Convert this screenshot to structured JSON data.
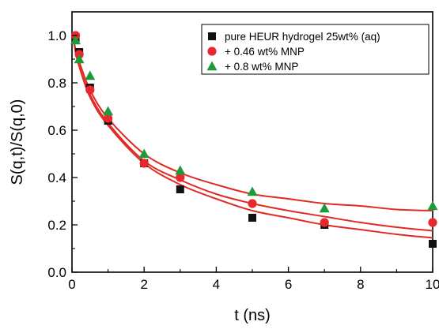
{
  "chart_data": {
    "type": "scatter",
    "title": "",
    "xlabel": "t (ns)",
    "ylabel": "S(q,t)/S(q,0)",
    "xlim": [
      0,
      10
    ],
    "ylim": [
      0,
      1.1
    ],
    "xticks": [
      0,
      2,
      4,
      6,
      8,
      10
    ],
    "yticks": [
      0.0,
      0.2,
      0.4,
      0.6,
      0.8,
      1.0
    ],
    "xtick_labels": [
      "0",
      "2",
      "4",
      "6",
      "8",
      "10"
    ],
    "ytick_labels": [
      "0.0",
      "0.2",
      "0.4",
      "0.6",
      "0.8",
      "1.0"
    ],
    "grid": false,
    "legend_position": "top-right",
    "series": [
      {
        "name": "pure HEUR hydrogel 25wt% (aq)",
        "marker": "square",
        "color": "#111111",
        "x": [
          0.1,
          0.2,
          0.5,
          1,
          2,
          3,
          5,
          7,
          10
        ],
        "y": [
          0.99,
          0.93,
          0.78,
          0.64,
          0.46,
          0.35,
          0.23,
          0.2,
          0.12
        ]
      },
      {
        "name": "+ 0.46 wt% MNP",
        "marker": "circle",
        "color": "#e8282d",
        "x": [
          0.1,
          0.2,
          0.5,
          1,
          2,
          3,
          5,
          7,
          10
        ],
        "y": [
          1.0,
          0.92,
          0.77,
          0.65,
          0.46,
          0.4,
          0.29,
          0.21,
          0.21
        ]
      },
      {
        "name": "+ 0.8 wt% MNP",
        "marker": "triangle",
        "color": "#1f9a3a",
        "x": [
          0.1,
          0.2,
          0.5,
          1,
          2,
          3,
          5,
          7,
          10
        ],
        "y": [
          0.98,
          0.9,
          0.83,
          0.68,
          0.5,
          0.43,
          0.34,
          0.27,
          0.28
        ]
      }
    ],
    "fit_curves": {
      "color": "#e02a22",
      "curves": [
        {
          "x": [
            0.03,
            0.1,
            0.2,
            0.5,
            1,
            2,
            3,
            4,
            5,
            6,
            7,
            8,
            9,
            10
          ],
          "y": [
            1.0,
            0.94,
            0.89,
            0.77,
            0.65,
            0.5,
            0.42,
            0.37,
            0.33,
            0.31,
            0.29,
            0.28,
            0.265,
            0.26
          ]
        },
        {
          "x": [
            0.03,
            0.1,
            0.2,
            0.5,
            1,
            2,
            3,
            4,
            5,
            6,
            7,
            8,
            9,
            10
          ],
          "y": [
            1.0,
            0.93,
            0.87,
            0.75,
            0.63,
            0.47,
            0.39,
            0.33,
            0.29,
            0.26,
            0.235,
            0.21,
            0.19,
            0.175
          ]
        },
        {
          "x": [
            0.03,
            0.1,
            0.2,
            0.5,
            1,
            2,
            3,
            4,
            5,
            6,
            7,
            8,
            9,
            10
          ],
          "y": [
            1.0,
            0.93,
            0.87,
            0.74,
            0.62,
            0.46,
            0.37,
            0.31,
            0.26,
            0.23,
            0.2,
            0.18,
            0.16,
            0.145
          ]
        }
      ]
    }
  }
}
